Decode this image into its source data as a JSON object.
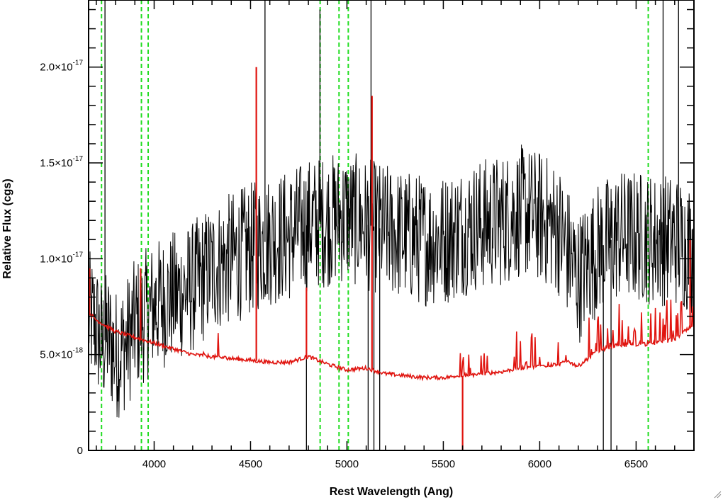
{
  "chart_data": {
    "type": "line",
    "title": "",
    "xlabel": "Rest Wavelength (Ang)",
    "ylabel": "Relative Flux (cgs)",
    "xlim": [
      3660,
      6800
    ],
    "ylim": [
      0,
      2.35e-17
    ],
    "x_ticks": [
      {
        "value": 4000,
        "label": "4000"
      },
      {
        "value": 4500,
        "label": "4500"
      },
      {
        "value": 5000,
        "label": "5000"
      },
      {
        "value": 5500,
        "label": "5500"
      },
      {
        "value": 6000,
        "label": "6000"
      },
      {
        "value": 6500,
        "label": "6500"
      }
    ],
    "y_ticks": [
      {
        "value": 0,
        "mantissa": "0",
        "exponent": ""
      },
      {
        "value": 5e-18,
        "mantissa": "5.0×10",
        "exponent": "-18"
      },
      {
        "value": 1e-17,
        "mantissa": "1.0×10",
        "exponent": "-17"
      },
      {
        "value": 1.5e-17,
        "mantissa": "1.5×10",
        "exponent": "-17"
      },
      {
        "value": 2e-17,
        "mantissa": "2.0×10",
        "exponent": "-17"
      }
    ],
    "grid": false,
    "series": [
      {
        "color": "#000000",
        "style": "solid",
        "x": [
          3660,
          3700,
          3730,
          3760,
          3800,
          3850,
          3900,
          3950,
          4000,
          4100,
          4200,
          4300,
          4400,
          4500,
          4600,
          4700,
          4800,
          4900,
          5000,
          5100,
          5200,
          5300,
          5400,
          5500,
          5600,
          5700,
          5800,
          5900,
          6000,
          6100,
          6200,
          6300,
          6400,
          6500,
          6600,
          6700,
          6800
        ],
        "y": [
          7e-18,
          6.5e-18,
          5.5e-18,
          6e-18,
          5e-18,
          5.5e-18,
          6.5e-18,
          7e-18,
          7.5e-18,
          8e-18,
          8.5e-18,
          9.5e-18,
          1e-17,
          1.05e-17,
          1.1e-17,
          1.12e-17,
          1.18e-17,
          1.2e-17,
          1.22e-17,
          1.18e-17,
          1.15e-17,
          1.12e-17,
          1.1e-17,
          1.1e-17,
          1.15e-17,
          1.18e-17,
          1.2e-17,
          1.25e-17,
          1.22e-17,
          1.15e-17,
          9e-18,
          1.05e-17,
          1.12e-17,
          1.12e-17,
          1.1e-17,
          1.1e-17,
          1.05e-17
        ],
        "noise_amplitude": 3.5e-18
      },
      {
        "color": "#e0140f",
        "style": "solid",
        "x": [
          3660,
          3700,
          3800,
          3900,
          4000,
          4100,
          4200,
          4300,
          4400,
          4500,
          4600,
          4700,
          4800,
          4900,
          5000,
          5100,
          5200,
          5300,
          5400,
          5500,
          5600,
          5700,
          5800,
          5900,
          6000,
          6100,
          6150,
          6200,
          6300,
          6400,
          6500,
          6600,
          6700,
          6750,
          6800
        ],
        "y": [
          7.2e-18,
          6.8e-18,
          6.2e-18,
          5.9e-18,
          5.6e-18,
          5.3e-18,
          5e-18,
          4.9e-18,
          4.8e-18,
          4.7e-18,
          4.6e-18,
          4.6e-18,
          4.9e-18,
          4.5e-18,
          4.2e-18,
          4.3e-18,
          4e-18,
          3.9e-18,
          3.8e-18,
          3.8e-18,
          3.9e-18,
          4e-18,
          4.1e-18,
          4.3e-18,
          4.4e-18,
          4.5e-18,
          4.6e-18,
          4.4e-18,
          5.2e-18,
          5.5e-18,
          5.5e-18,
          5.6e-18,
          5.8e-18,
          6.2e-18,
          6.5e-18
        ]
      }
    ],
    "red_spikes": [
      {
        "x": 3665,
        "y": 9.5e-18
      },
      {
        "x": 3930,
        "y": 9.5e-18
      },
      {
        "x": 4530,
        "y": 2e-17
      },
      {
        "x": 4790,
        "y": 8.5e-18
      },
      {
        "x": 5130,
        "y": 1.85e-17
      },
      {
        "x": 5600,
        "y": 0
      },
      {
        "x": 6780,
        "y": 1.1e-17
      }
    ],
    "black_spikes": [
      {
        "x": 3745,
        "y": 2.35e-17
      },
      {
        "x": 4010,
        "y": 9e-18
      },
      {
        "x": 4575,
        "y": 2.35e-17
      },
      {
        "x": 4790,
        "y": 0
      },
      {
        "x": 4860,
        "y": 2.3e-17
      },
      {
        "x": 5110,
        "y": 0
      },
      {
        "x": 5125,
        "y": 2.35e-17
      },
      {
        "x": 5140,
        "y": 0
      },
      {
        "x": 5170,
        "y": 0
      },
      {
        "x": 6330,
        "y": 0
      },
      {
        "x": 6370,
        "y": 0
      },
      {
        "x": 6640,
        "y": 2.35e-17
      },
      {
        "x": 6720,
        "y": 2.35e-17
      }
    ],
    "reference_lines": {
      "color": "#22dd22",
      "style": "dashed",
      "x": [
        3727,
        3934,
        3969,
        4861,
        4959,
        5007,
        6563
      ]
    }
  }
}
